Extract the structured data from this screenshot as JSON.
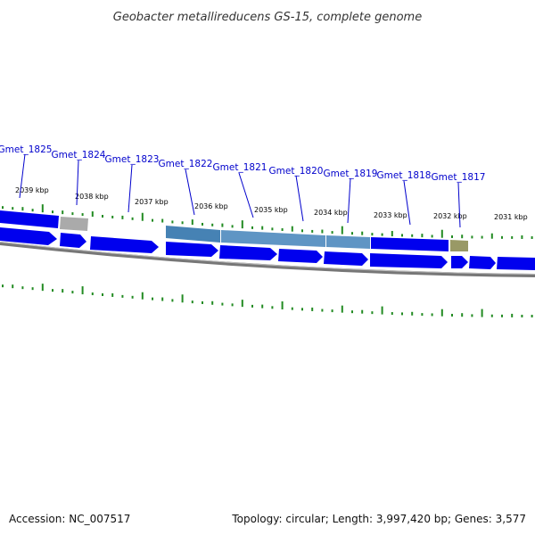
{
  "title": "Geobacter metallireducens GS-15, complete genome",
  "footer": {
    "accession": "Accession: NC_007517",
    "summary": "Topology: circular; Length: 3,997,420 bp; Genes: 3,577"
  },
  "colors": {
    "label_blue": "#0000cc",
    "leader_line": "#0000cc",
    "cds_blue": "#0000ee",
    "highlight_steel": "#4682b4",
    "pseudo_gray": "#aaaaaa",
    "olive_feature": "#999966",
    "tick_green": "#228b22",
    "backbone_gray": "#777777"
  },
  "gene_labels": [
    {
      "name": "Gmet_1825"
    },
    {
      "name": "Gmet_1824"
    },
    {
      "name": "Gmet_1823"
    },
    {
      "name": "Gmet_1822"
    },
    {
      "name": "Gmet_1821"
    },
    {
      "name": "Gmet_1820"
    },
    {
      "name": "Gmet_1819"
    },
    {
      "name": "Gmet_1818"
    },
    {
      "name": "Gmet_1817"
    }
  ],
  "kbp_labels": [
    "2039 kbp",
    "2038 kbp",
    "2037 kbp",
    "2036 kbp",
    "2035 kbp",
    "2034 kbp",
    "2033 kbp",
    "2032 kbp",
    "2031 kbp"
  ]
}
